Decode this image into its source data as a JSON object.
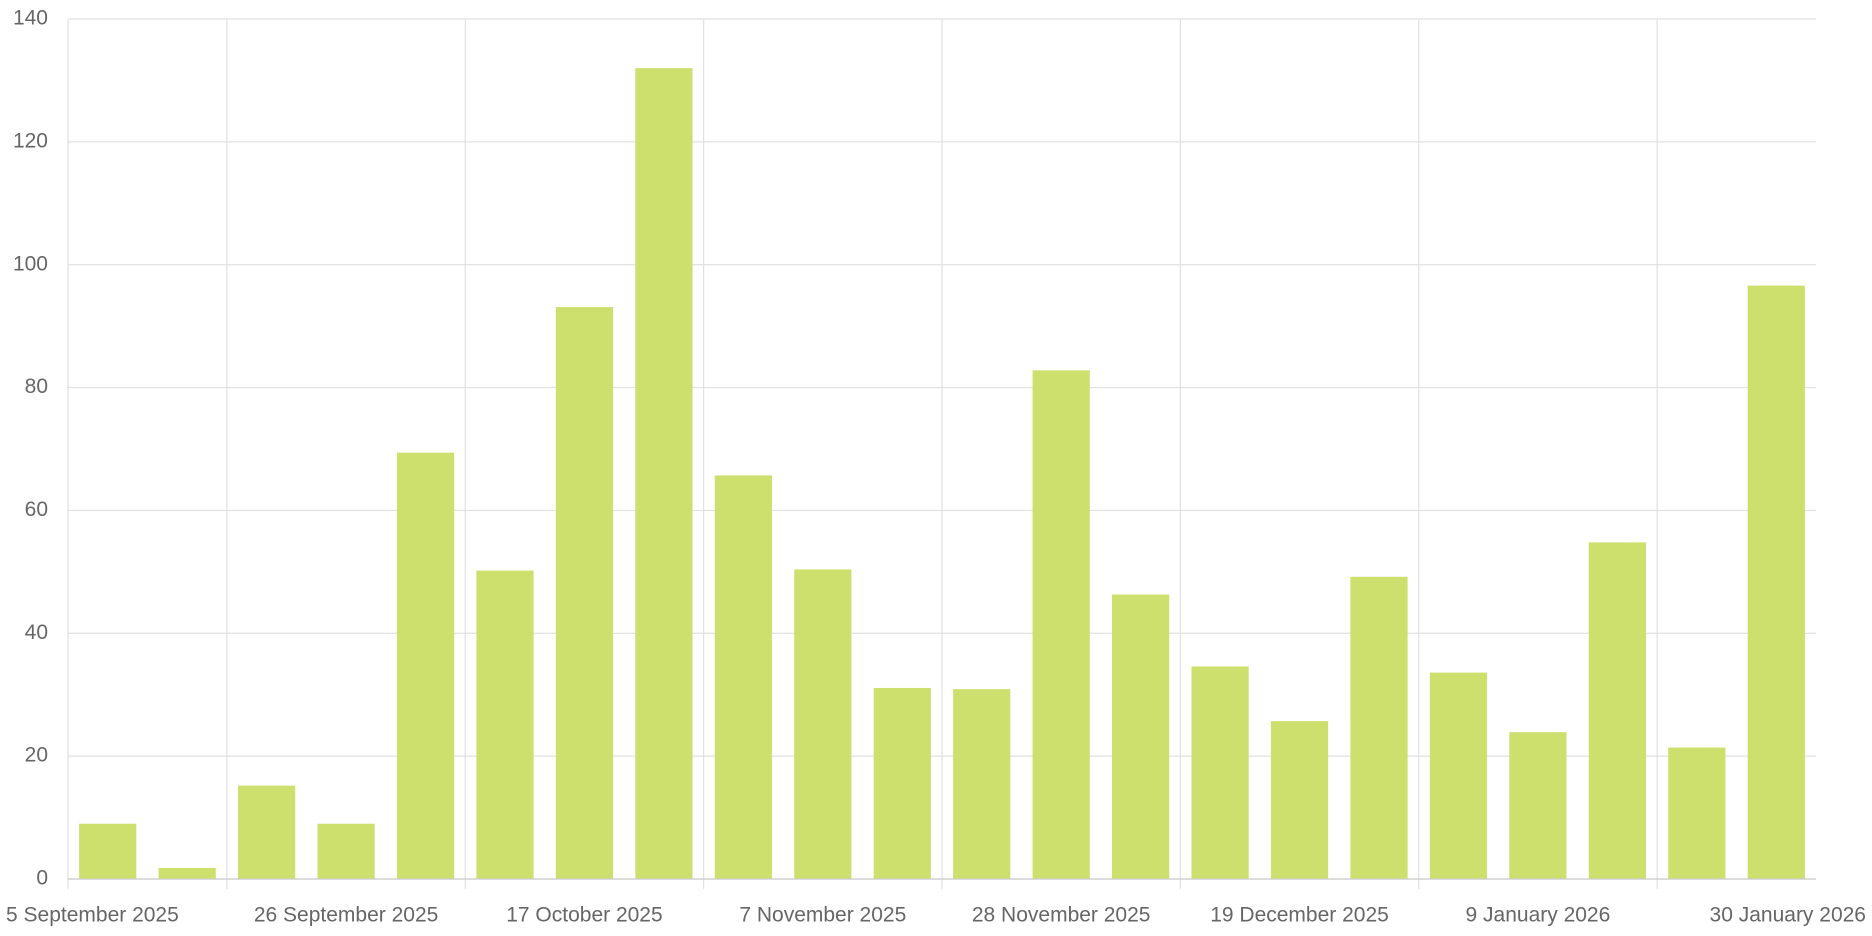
{
  "chart_data": {
    "type": "bar",
    "categories": [
      "5 September 2025",
      null,
      null,
      "26 September 2025",
      null,
      null,
      "17 October 2025",
      null,
      null,
      "7 November 2025",
      null,
      null,
      "28 November 2025",
      null,
      null,
      "19 December 2025",
      null,
      null,
      "9 January 2026",
      null,
      null,
      "30 January 2026"
    ],
    "values": [
      9,
      1.8,
      15.2,
      9,
      69.4,
      50.2,
      93.1,
      132,
      65.7,
      50.4,
      31.1,
      30.9,
      82.8,
      46.3,
      34.6,
      25.7,
      49.2,
      33.6,
      23.9,
      54.8,
      21.4,
      96.6
    ],
    "color": "#cddf6d",
    "ylim": [
      0,
      140
    ],
    "yticks": [
      0,
      20,
      40,
      60,
      80,
      100,
      120,
      140
    ],
    "grid": true
  }
}
